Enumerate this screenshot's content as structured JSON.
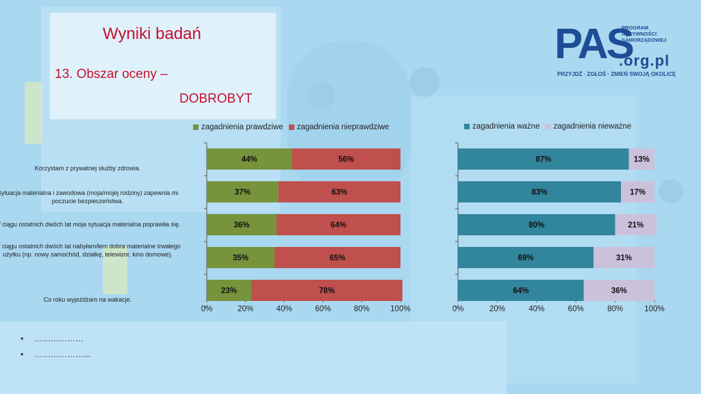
{
  "header": {
    "title": "Wyniki badań",
    "subtitle_line1": "13. Obszar oceny –",
    "subtitle_line2": "DOBROBYT"
  },
  "logo": {
    "big": "PAS",
    "small_lines": [
      "PROGRAM",
      "AKTYWNOŚCI",
      "SAMORZĄDOWEJ"
    ],
    "url": ".org.pl",
    "tagline": "PRZYJDŹ · ZGŁOŚ · ZMIEŃ SWOJĄ OKOLICĘ"
  },
  "colors": {
    "background": "#a9d8f0",
    "green": "#77933c",
    "red": "#c0504d",
    "teal": "#31859c",
    "lilac": "#ccc1da",
    "title_red": "#c8102e"
  },
  "bullets": [
    "………………",
    "………………..."
  ],
  "chart_data": [
    {
      "type": "bar",
      "orientation": "horizontal",
      "stacked": true,
      "categories": [
        "Korzystam z prywatnej służby zdrowia.",
        "Sytuacja materialna i zawodowa (moja/mojej rodziny) zapewnia mi poczucie bezpieczeństwa.",
        "W ciągu ostatnich dwóch lat moja sytuacja materialna poprawiła się.",
        "W ciągu ostatnich dwóch lat nabyłam/łem dobra materialne trwałego użytku (np. nowy samochód, działkę, telewizor, kino domowe).",
        "Co roku wyjeżdżam na wakacje."
      ],
      "series": [
        {
          "name": "zagadnienia prawdziwe",
          "color": "#77933c",
          "values": [
            44,
            37,
            36,
            35,
            23
          ],
          "labels": [
            "44%",
            "37%",
            "36%",
            "35%",
            "23%"
          ]
        },
        {
          "name": "zagadnienia nieprawdziwe",
          "color": "#c0504d",
          "values": [
            56,
            63,
            64,
            65,
            78
          ],
          "labels": [
            "56%",
            "63%",
            "64%",
            "65%",
            "78%"
          ]
        }
      ],
      "xlim": [
        0,
        100
      ],
      "xticks": [
        "0%",
        "20%",
        "40%",
        "60%",
        "80%",
        "100%"
      ],
      "legend_position": "top",
      "grid": false
    },
    {
      "type": "bar",
      "orientation": "horizontal",
      "stacked": true,
      "categories": [
        "Korzystam z prywatnej służby zdrowia.",
        "Sytuacja materialna i zawodowa (moja/mojej rodziny) zapewnia mi poczucie bezpieczeństwa.",
        "W ciągu ostatnich dwóch lat moja sytuacja materialna poprawiła się.",
        "W ciągu ostatnich dwóch lat nabyłam/łem dobra materialne trwałego użytku (np. nowy samochód, działkę, telewizor, kino domowe).",
        "Co roku wyjeżdżam na wakacje."
      ],
      "series": [
        {
          "name": "zagadnienia ważne",
          "color": "#31859c",
          "values": [
            87,
            83,
            80,
            69,
            64
          ],
          "labels": [
            "87%",
            "83%",
            "80%",
            "69%",
            "64%"
          ]
        },
        {
          "name": "zagadnienia nieważne",
          "color": "#ccc1da",
          "values": [
            13,
            17,
            21,
            31,
            36
          ],
          "labels": [
            "13%",
            "17%",
            "21%",
            "31%",
            "36%"
          ]
        }
      ],
      "xlim": [
        0,
        100
      ],
      "xticks": [
        "0%",
        "20%",
        "40%",
        "60%",
        "80%",
        "100%"
      ],
      "legend_position": "top",
      "grid": false
    }
  ]
}
